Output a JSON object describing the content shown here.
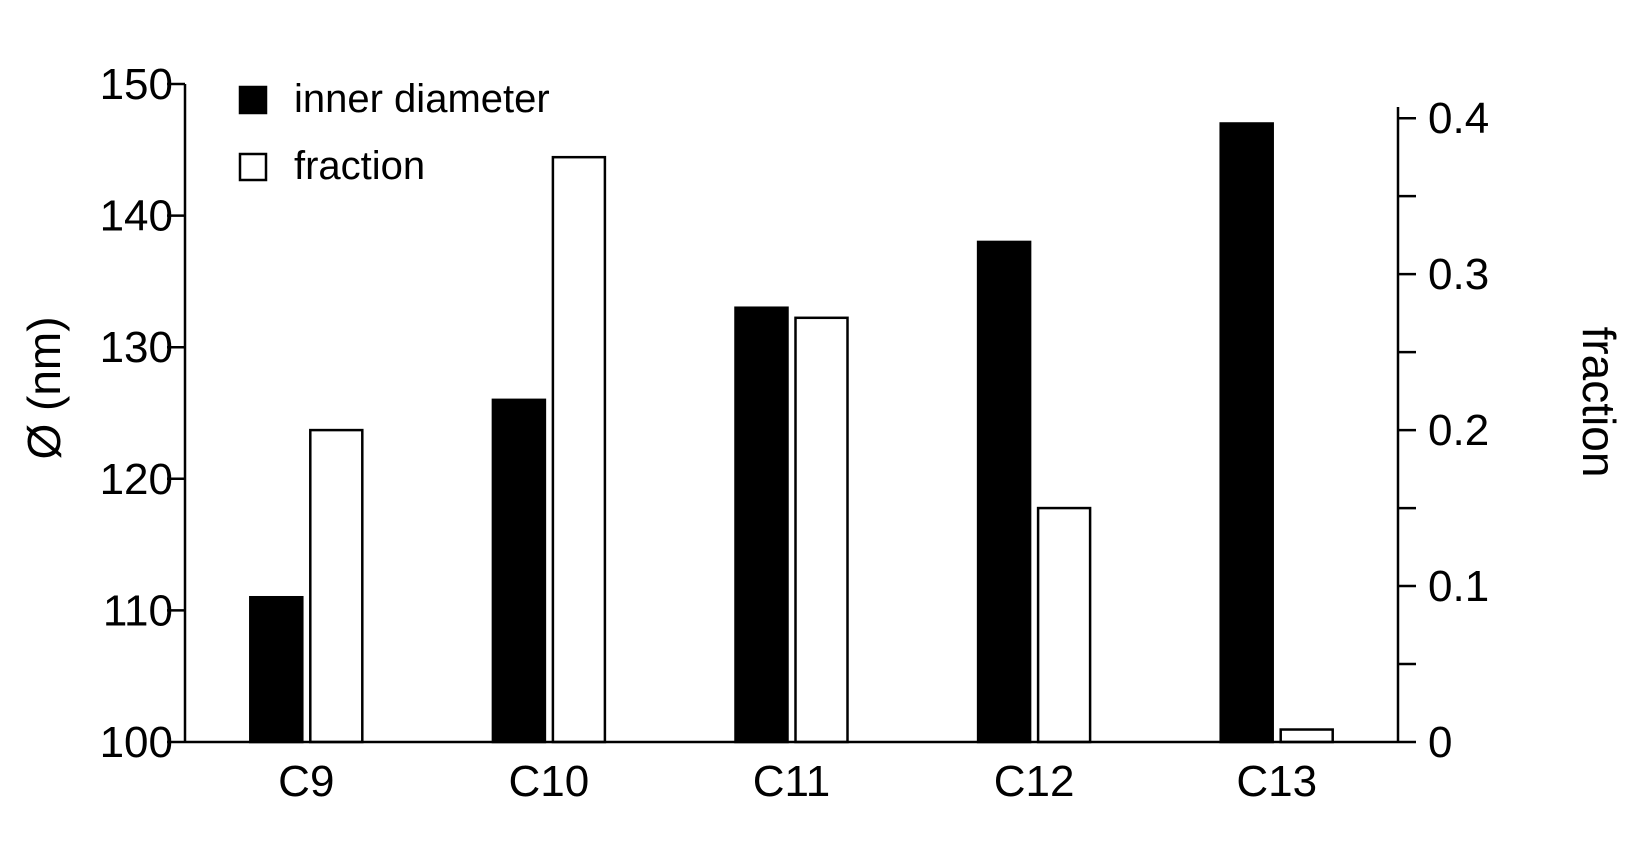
{
  "chart_data": {
    "type": "bar",
    "categories": [
      "C9",
      "C10",
      "C11",
      "C12",
      "C13"
    ],
    "series": [
      {
        "name": "inner diameter",
        "axis": "left",
        "fill": "#000000",
        "values": [
          111,
          126,
          133,
          138,
          147
        ]
      },
      {
        "name": "fraction",
        "axis": "right",
        "fill": "#ffffff",
        "values": [
          0.2,
          0.375,
          0.272,
          0.15,
          0.008
        ]
      }
    ],
    "ylabel_left": "Ø (nm)",
    "ylabel_right": "fraction",
    "ylim_left": [
      100,
      150
    ],
    "ylim_right": [
      0,
      0.42
    ],
    "left_ticks": [
      {
        "value": 100,
        "label": "100"
      },
      {
        "value": 110,
        "label": "110"
      },
      {
        "value": 120,
        "label": "120"
      },
      {
        "value": 130,
        "label": "130"
      },
      {
        "value": 140,
        "label": "140"
      },
      {
        "value": 150,
        "label": "150"
      }
    ],
    "right_ticks": [
      {
        "value": 0,
        "label": "0"
      },
      {
        "value": 0.05,
        "label": ""
      },
      {
        "value": 0.1,
        "label": "0.1"
      },
      {
        "value": 0.15,
        "label": ""
      },
      {
        "value": 0.2,
        "label": "0.2"
      },
      {
        "value": 0.25,
        "label": ""
      },
      {
        "value": 0.3,
        "label": "0.3"
      },
      {
        "value": 0.35,
        "label": ""
      },
      {
        "value": 0.4,
        "label": "0.4"
      }
    ],
    "legend_position": "top-left",
    "grid": false
  }
}
